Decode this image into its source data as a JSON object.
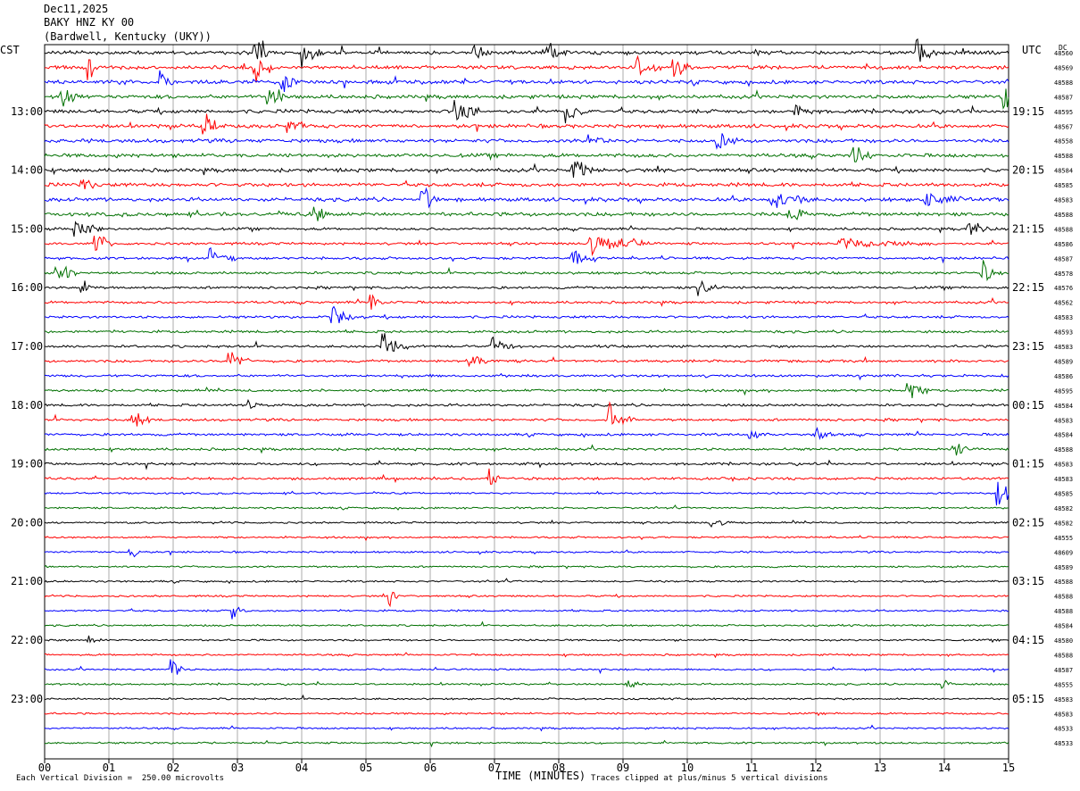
{
  "header": {
    "date": "Dec11,2025",
    "station": "BAKY HNZ KY 00",
    "location": "(Bardwell, Kentucky (UKY))"
  },
  "labels": {
    "left_tz": "CST",
    "right_tz": "UTC",
    "dc_label": "DC",
    "xlabel": "TIME (MINUTES)",
    "scale_note": "Each Vertical Division =  250.00 microvolts",
    "clip_note": "Traces clipped at plus/minus 5 vertical divisions"
  },
  "colors": {
    "trace_cycle": [
      "#000000",
      "#ff0000",
      "#0000ff",
      "#007000"
    ],
    "grid": "#000000",
    "text": "#000000"
  },
  "chart_data": {
    "type": "line",
    "description_type": "helicorder",
    "x_range": [
      0,
      15
    ],
    "x_ticks": [
      "00",
      "01",
      "02",
      "03",
      "04",
      "05",
      "06",
      "07",
      "08",
      "09",
      "10",
      "11",
      "12",
      "13",
      "14",
      "15"
    ],
    "minutes_per_line": 15,
    "lines_count": 48,
    "left_time_labels": [
      "13:00",
      "14:00",
      "15:00",
      "16:00",
      "17:00",
      "18:00",
      "19:00",
      "20:00",
      "21:00",
      "22:00",
      "23:00"
    ],
    "right_time_labels": [
      "19:15",
      "20:15",
      "21:15",
      "22:15",
      "23:15",
      "00:15",
      "01:15",
      "02:15",
      "03:15",
      "04:15",
      "05:15"
    ],
    "label_lines": [
      4,
      8,
      12,
      16,
      20,
      24,
      28,
      32,
      36,
      40,
      44
    ],
    "dc_offsets": [
      "48560",
      "48569",
      "48588",
      "48587",
      "48595",
      "48567",
      "48558",
      "48588",
      "48584",
      "48585",
      "48583",
      "48588",
      "48588",
      "48586",
      "48587",
      "48578",
      "48576",
      "48562",
      "48583",
      "48593",
      "48583",
      "48589",
      "48586",
      "48595",
      "48584",
      "48583",
      "48584",
      "48588",
      "48583",
      "48583",
      "48585",
      "48582",
      "48582",
      "48555",
      "48609",
      "48589",
      "48588",
      "48588",
      "48588",
      "48584",
      "48580",
      "48588",
      "48587",
      "48555",
      "48583",
      "48583",
      "48533",
      "48533"
    ],
    "events": [
      {
        "line": 0,
        "minute": 3.3,
        "amp": 5,
        "len": 0.25
      },
      {
        "line": 0,
        "minute": 4.05,
        "amp": 5,
        "len": 0.3
      },
      {
        "line": 0,
        "minute": 6.7,
        "amp": 4,
        "len": 0.25
      },
      {
        "line": 0,
        "minute": 7.85,
        "amp": 4,
        "len": 0.3
      },
      {
        "line": 0,
        "minute": 13.6,
        "amp": 4,
        "len": 0.3
      },
      {
        "line": 1,
        "minute": 0.7,
        "amp": 4,
        "len": 0.2
      },
      {
        "line": 1,
        "minute": 3.3,
        "amp": 5,
        "len": 0.3
      },
      {
        "line": 1,
        "minute": 9.2,
        "amp": 4,
        "len": 0.4
      },
      {
        "line": 1,
        "minute": 9.8,
        "amp": 4,
        "len": 0.3
      },
      {
        "line": 2,
        "minute": 3.7,
        "amp": 4,
        "len": 0.3
      },
      {
        "line": 2,
        "minute": 1.8,
        "amp": 3,
        "len": 0.2
      },
      {
        "line": 3,
        "minute": 0.3,
        "amp": 3,
        "len": 0.3
      },
      {
        "line": 3,
        "minute": 3.5,
        "amp": 4,
        "len": 0.3
      },
      {
        "line": 3,
        "minute": 14.95,
        "amp": 4,
        "len": 0.2
      },
      {
        "line": 4,
        "minute": 6.4,
        "amp": 5,
        "len": 0.4
      },
      {
        "line": 4,
        "minute": 8.15,
        "amp": 4,
        "len": 0.3
      },
      {
        "line": 4,
        "minute": 11.7,
        "amp": 3,
        "len": 0.3
      },
      {
        "line": 5,
        "minute": 2.5,
        "amp": 4,
        "len": 0.3
      },
      {
        "line": 5,
        "minute": 3.8,
        "amp": 3,
        "len": 0.3
      },
      {
        "line": 6,
        "minute": 8.5,
        "amp": 3,
        "len": 0.3
      },
      {
        "line": 6,
        "minute": 10.5,
        "amp": 3,
        "len": 0.3
      },
      {
        "line": 7,
        "minute": 12.6,
        "amp": 4,
        "len": 0.4
      },
      {
        "line": 8,
        "minute": 8.25,
        "amp": 5,
        "len": 0.3
      },
      {
        "line": 9,
        "minute": 0.6,
        "amp": 3,
        "len": 0.2
      },
      {
        "line": 10,
        "minute": 5.9,
        "amp": 4,
        "len": 0.3
      },
      {
        "line": 10,
        "minute": 11.3,
        "amp": 3,
        "len": 0.6
      },
      {
        "line": 10,
        "minute": 13.7,
        "amp": 3,
        "len": 0.6
      },
      {
        "line": 11,
        "minute": 4.2,
        "amp": 4,
        "len": 0.3
      },
      {
        "line": 11,
        "minute": 11.6,
        "amp": 3,
        "len": 0.3
      },
      {
        "line": 12,
        "minute": 0.5,
        "amp": 4,
        "len": 0.4
      },
      {
        "line": 12,
        "minute": 14.4,
        "amp": 3,
        "len": 0.4
      },
      {
        "line": 13,
        "minute": 0.8,
        "amp": 4,
        "len": 0.3
      },
      {
        "line": 13,
        "minute": 8.5,
        "amp": 4,
        "len": 0.9
      },
      {
        "line": 13,
        "minute": 12.4,
        "amp": 2,
        "len": 1.5
      },
      {
        "line": 14,
        "minute": 2.6,
        "amp": 3,
        "len": 0.4
      },
      {
        "line": 14,
        "minute": 8.2,
        "amp": 3,
        "len": 0.4
      },
      {
        "line": 15,
        "minute": 0.2,
        "amp": 4,
        "len": 0.3
      },
      {
        "line": 15,
        "minute": 14.6,
        "amp": 4,
        "len": 0.3
      },
      {
        "line": 16,
        "minute": 0.6,
        "amp": 3,
        "len": 0.2
      },
      {
        "line": 16,
        "minute": 10.2,
        "amp": 3,
        "len": 0.3
      },
      {
        "line": 17,
        "minute": 5.1,
        "amp": 4,
        "len": 0.2
      },
      {
        "line": 18,
        "minute": 4.5,
        "amp": 3,
        "len": 0.5
      },
      {
        "line": 20,
        "minute": 5.3,
        "amp": 4,
        "len": 0.4
      },
      {
        "line": 20,
        "minute": 7.0,
        "amp": 3,
        "len": 0.3
      },
      {
        "line": 21,
        "minute": 2.9,
        "amp": 4,
        "len": 0.3
      },
      {
        "line": 21,
        "minute": 6.6,
        "amp": 4,
        "len": 0.3
      },
      {
        "line": 23,
        "minute": 13.45,
        "amp": 4,
        "len": 0.3
      },
      {
        "line": 24,
        "minute": 3.2,
        "amp": 2,
        "len": 0.2
      },
      {
        "line": 25,
        "minute": 1.4,
        "amp": 3,
        "len": 0.3
      },
      {
        "line": 25,
        "minute": 8.8,
        "amp": 5,
        "len": 0.4
      },
      {
        "line": 26,
        "minute": 11.0,
        "amp": 2,
        "len": 0.3
      },
      {
        "line": 26,
        "minute": 12.0,
        "amp": 3,
        "len": 0.3
      },
      {
        "line": 27,
        "minute": 14.2,
        "amp": 3,
        "len": 0.2
      },
      {
        "line": 29,
        "minute": 6.95,
        "amp": 3,
        "len": 0.2
      },
      {
        "line": 30,
        "minute": 14.85,
        "amp": 5,
        "len": 0.3
      },
      {
        "line": 32,
        "minute": 10.4,
        "amp": 2,
        "len": 0.3
      },
      {
        "line": 34,
        "minute": 1.35,
        "amp": 2,
        "len": 0.2
      },
      {
        "line": 37,
        "minute": 5.4,
        "amp": 3,
        "len": 0.2
      },
      {
        "line": 38,
        "minute": 2.95,
        "amp": 3,
        "len": 0.2
      },
      {
        "line": 40,
        "minute": 0.7,
        "amp": 3,
        "len": 0.2
      },
      {
        "line": 42,
        "minute": 2.0,
        "amp": 3,
        "len": 0.2
      },
      {
        "line": 43,
        "minute": 9.1,
        "amp": 2,
        "len": 0.3
      },
      {
        "line": 43,
        "minute": 14.0,
        "amp": 2,
        "len": 0.2
      }
    ]
  }
}
